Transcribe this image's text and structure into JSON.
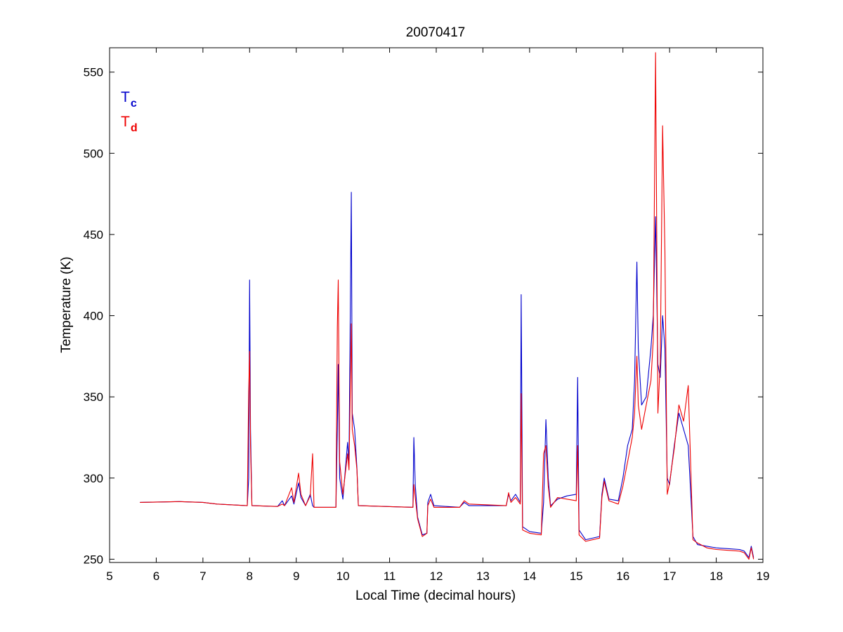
{
  "chart_data": {
    "type": "line",
    "title": "20070417",
    "xlabel": "Local Time (decimal hours)",
    "ylabel": "Temperature (K)",
    "xlim": [
      5,
      19
    ],
    "ylim": [
      248,
      565
    ],
    "xticks": [
      5,
      6,
      7,
      8,
      9,
      10,
      11,
      12,
      13,
      14,
      15,
      16,
      17,
      18,
      19
    ],
    "yticks": [
      250,
      300,
      350,
      400,
      450,
      500,
      550
    ],
    "grid": false,
    "legend": {
      "position": "top-left"
    },
    "series": [
      {
        "name": "T_c",
        "label_main": "T",
        "label_sub": "c",
        "color": "#0000cc",
        "points": [
          [
            5.65,
            285
          ],
          [
            6.5,
            285.5
          ],
          [
            7.0,
            285
          ],
          [
            7.3,
            284
          ],
          [
            7.95,
            283
          ],
          [
            7.98,
            300
          ],
          [
            8.0,
            422
          ],
          [
            8.02,
            330
          ],
          [
            8.05,
            283
          ],
          [
            8.6,
            282.5
          ],
          [
            8.7,
            286
          ],
          [
            8.75,
            283
          ],
          [
            8.9,
            289
          ],
          [
            8.95,
            284
          ],
          [
            9.05,
            297
          ],
          [
            9.1,
            288
          ],
          [
            9.2,
            283
          ],
          [
            9.3,
            290
          ],
          [
            9.35,
            283
          ],
          [
            9.38,
            282
          ],
          [
            9.85,
            282
          ],
          [
            9.88,
            330
          ],
          [
            9.9,
            370
          ],
          [
            9.93,
            300
          ],
          [
            10.0,
            287
          ],
          [
            10.1,
            322
          ],
          [
            10.13,
            310
          ],
          [
            10.18,
            476
          ],
          [
            10.2,
            340
          ],
          [
            10.25,
            330
          ],
          [
            10.3,
            306
          ],
          [
            10.33,
            283
          ],
          [
            11.5,
            282
          ],
          [
            11.52,
            325
          ],
          [
            11.55,
            296
          ],
          [
            11.6,
            276
          ],
          [
            11.7,
            265
          ],
          [
            11.8,
            266
          ],
          [
            11.82,
            285
          ],
          [
            11.88,
            290
          ],
          [
            11.95,
            283
          ],
          [
            12.5,
            282
          ],
          [
            12.6,
            285
          ],
          [
            12.7,
            283
          ],
          [
            13.5,
            283
          ],
          [
            13.55,
            290
          ],
          [
            13.6,
            286
          ],
          [
            13.7,
            290
          ],
          [
            13.8,
            285
          ],
          [
            13.82,
            413
          ],
          [
            13.85,
            270
          ],
          [
            14.0,
            267
          ],
          [
            14.25,
            266
          ],
          [
            14.3,
            285
          ],
          [
            14.35,
            336
          ],
          [
            14.4,
            300
          ],
          [
            14.45,
            283
          ],
          [
            14.6,
            287
          ],
          [
            14.8,
            289
          ],
          [
            15.0,
            290
          ],
          [
            15.03,
            362
          ],
          [
            15.06,
            268
          ],
          [
            15.2,
            262
          ],
          [
            15.5,
            264
          ],
          [
            15.55,
            290
          ],
          [
            15.6,
            300
          ],
          [
            15.7,
            287
          ],
          [
            15.9,
            286
          ],
          [
            16.0,
            300
          ],
          [
            16.1,
            320
          ],
          [
            16.2,
            330
          ],
          [
            16.25,
            360
          ],
          [
            16.3,
            433
          ],
          [
            16.33,
            380
          ],
          [
            16.4,
            345
          ],
          [
            16.5,
            350
          ],
          [
            16.6,
            380
          ],
          [
            16.65,
            400
          ],
          [
            16.7,
            461
          ],
          [
            16.75,
            370
          ],
          [
            16.8,
            362
          ],
          [
            16.85,
            400
          ],
          [
            16.9,
            380
          ],
          [
            16.95,
            300
          ],
          [
            17.0,
            296
          ],
          [
            17.1,
            320
          ],
          [
            17.2,
            340
          ],
          [
            17.3,
            330
          ],
          [
            17.4,
            320
          ],
          [
            17.5,
            264
          ],
          [
            17.6,
            259
          ],
          [
            17.8,
            258
          ],
          [
            18.0,
            257
          ],
          [
            18.5,
            256
          ],
          [
            18.6,
            255
          ],
          [
            18.7,
            251
          ],
          [
            18.75,
            258
          ],
          [
            18.8,
            251
          ]
        ]
      },
      {
        "name": "T_d",
        "label_main": "T",
        "label_sub": "d",
        "color": "#ee0000",
        "points": [
          [
            5.65,
            285
          ],
          [
            6.5,
            285.5
          ],
          [
            7.0,
            285
          ],
          [
            7.3,
            284
          ],
          [
            7.95,
            283
          ],
          [
            7.98,
            353
          ],
          [
            8.0,
            378
          ],
          [
            8.02,
            320
          ],
          [
            8.05,
            283
          ],
          [
            8.6,
            282.5
          ],
          [
            8.7,
            284
          ],
          [
            8.75,
            283
          ],
          [
            8.9,
            294
          ],
          [
            8.95,
            285
          ],
          [
            9.05,
            303
          ],
          [
            9.1,
            290
          ],
          [
            9.2,
            283
          ],
          [
            9.3,
            289
          ],
          [
            9.35,
            315
          ],
          [
            9.38,
            282
          ],
          [
            9.85,
            282
          ],
          [
            9.88,
            393
          ],
          [
            9.9,
            422
          ],
          [
            9.93,
            310
          ],
          [
            10.0,
            290
          ],
          [
            10.1,
            315
          ],
          [
            10.13,
            305
          ],
          [
            10.18,
            395
          ],
          [
            10.2,
            330
          ],
          [
            10.25,
            320
          ],
          [
            10.3,
            305
          ],
          [
            10.33,
            283
          ],
          [
            11.5,
            282
          ],
          [
            11.52,
            296
          ],
          [
            11.55,
            288
          ],
          [
            11.6,
            275
          ],
          [
            11.7,
            264
          ],
          [
            11.8,
            266
          ],
          [
            11.82,
            283
          ],
          [
            11.88,
            287
          ],
          [
            11.95,
            282
          ],
          [
            12.5,
            282
          ],
          [
            12.6,
            286
          ],
          [
            12.7,
            284
          ],
          [
            13.5,
            283
          ],
          [
            13.55,
            291
          ],
          [
            13.6,
            285
          ],
          [
            13.7,
            288
          ],
          [
            13.8,
            284
          ],
          [
            13.82,
            352
          ],
          [
            13.85,
            268
          ],
          [
            14.0,
            266
          ],
          [
            14.25,
            265
          ],
          [
            14.3,
            315
          ],
          [
            14.35,
            320
          ],
          [
            14.4,
            295
          ],
          [
            14.45,
            282
          ],
          [
            14.6,
            288
          ],
          [
            14.8,
            287
          ],
          [
            15.0,
            286
          ],
          [
            15.03,
            320
          ],
          [
            15.06,
            265
          ],
          [
            15.2,
            261
          ],
          [
            15.5,
            263
          ],
          [
            15.55,
            288
          ],
          [
            15.6,
            298
          ],
          [
            15.7,
            286
          ],
          [
            15.9,
            284
          ],
          [
            16.0,
            295
          ],
          [
            16.1,
            310
          ],
          [
            16.2,
            325
          ],
          [
            16.25,
            340
          ],
          [
            16.3,
            375
          ],
          [
            16.33,
            345
          ],
          [
            16.4,
            330
          ],
          [
            16.5,
            345
          ],
          [
            16.6,
            360
          ],
          [
            16.65,
            385
          ],
          [
            16.7,
            562
          ],
          [
            16.75,
            340
          ],
          [
            16.8,
            372
          ],
          [
            16.85,
            517
          ],
          [
            16.9,
            440
          ],
          [
            16.95,
            290
          ],
          [
            17.0,
            297
          ],
          [
            17.1,
            318
          ],
          [
            17.2,
            345
          ],
          [
            17.3,
            335
          ],
          [
            17.4,
            357
          ],
          [
            17.5,
            262
          ],
          [
            17.6,
            260
          ],
          [
            17.8,
            257
          ],
          [
            18.0,
            256
          ],
          [
            18.5,
            255
          ],
          [
            18.6,
            254
          ],
          [
            18.7,
            250
          ],
          [
            18.75,
            257
          ],
          [
            18.8,
            250
          ]
        ]
      }
    ]
  }
}
